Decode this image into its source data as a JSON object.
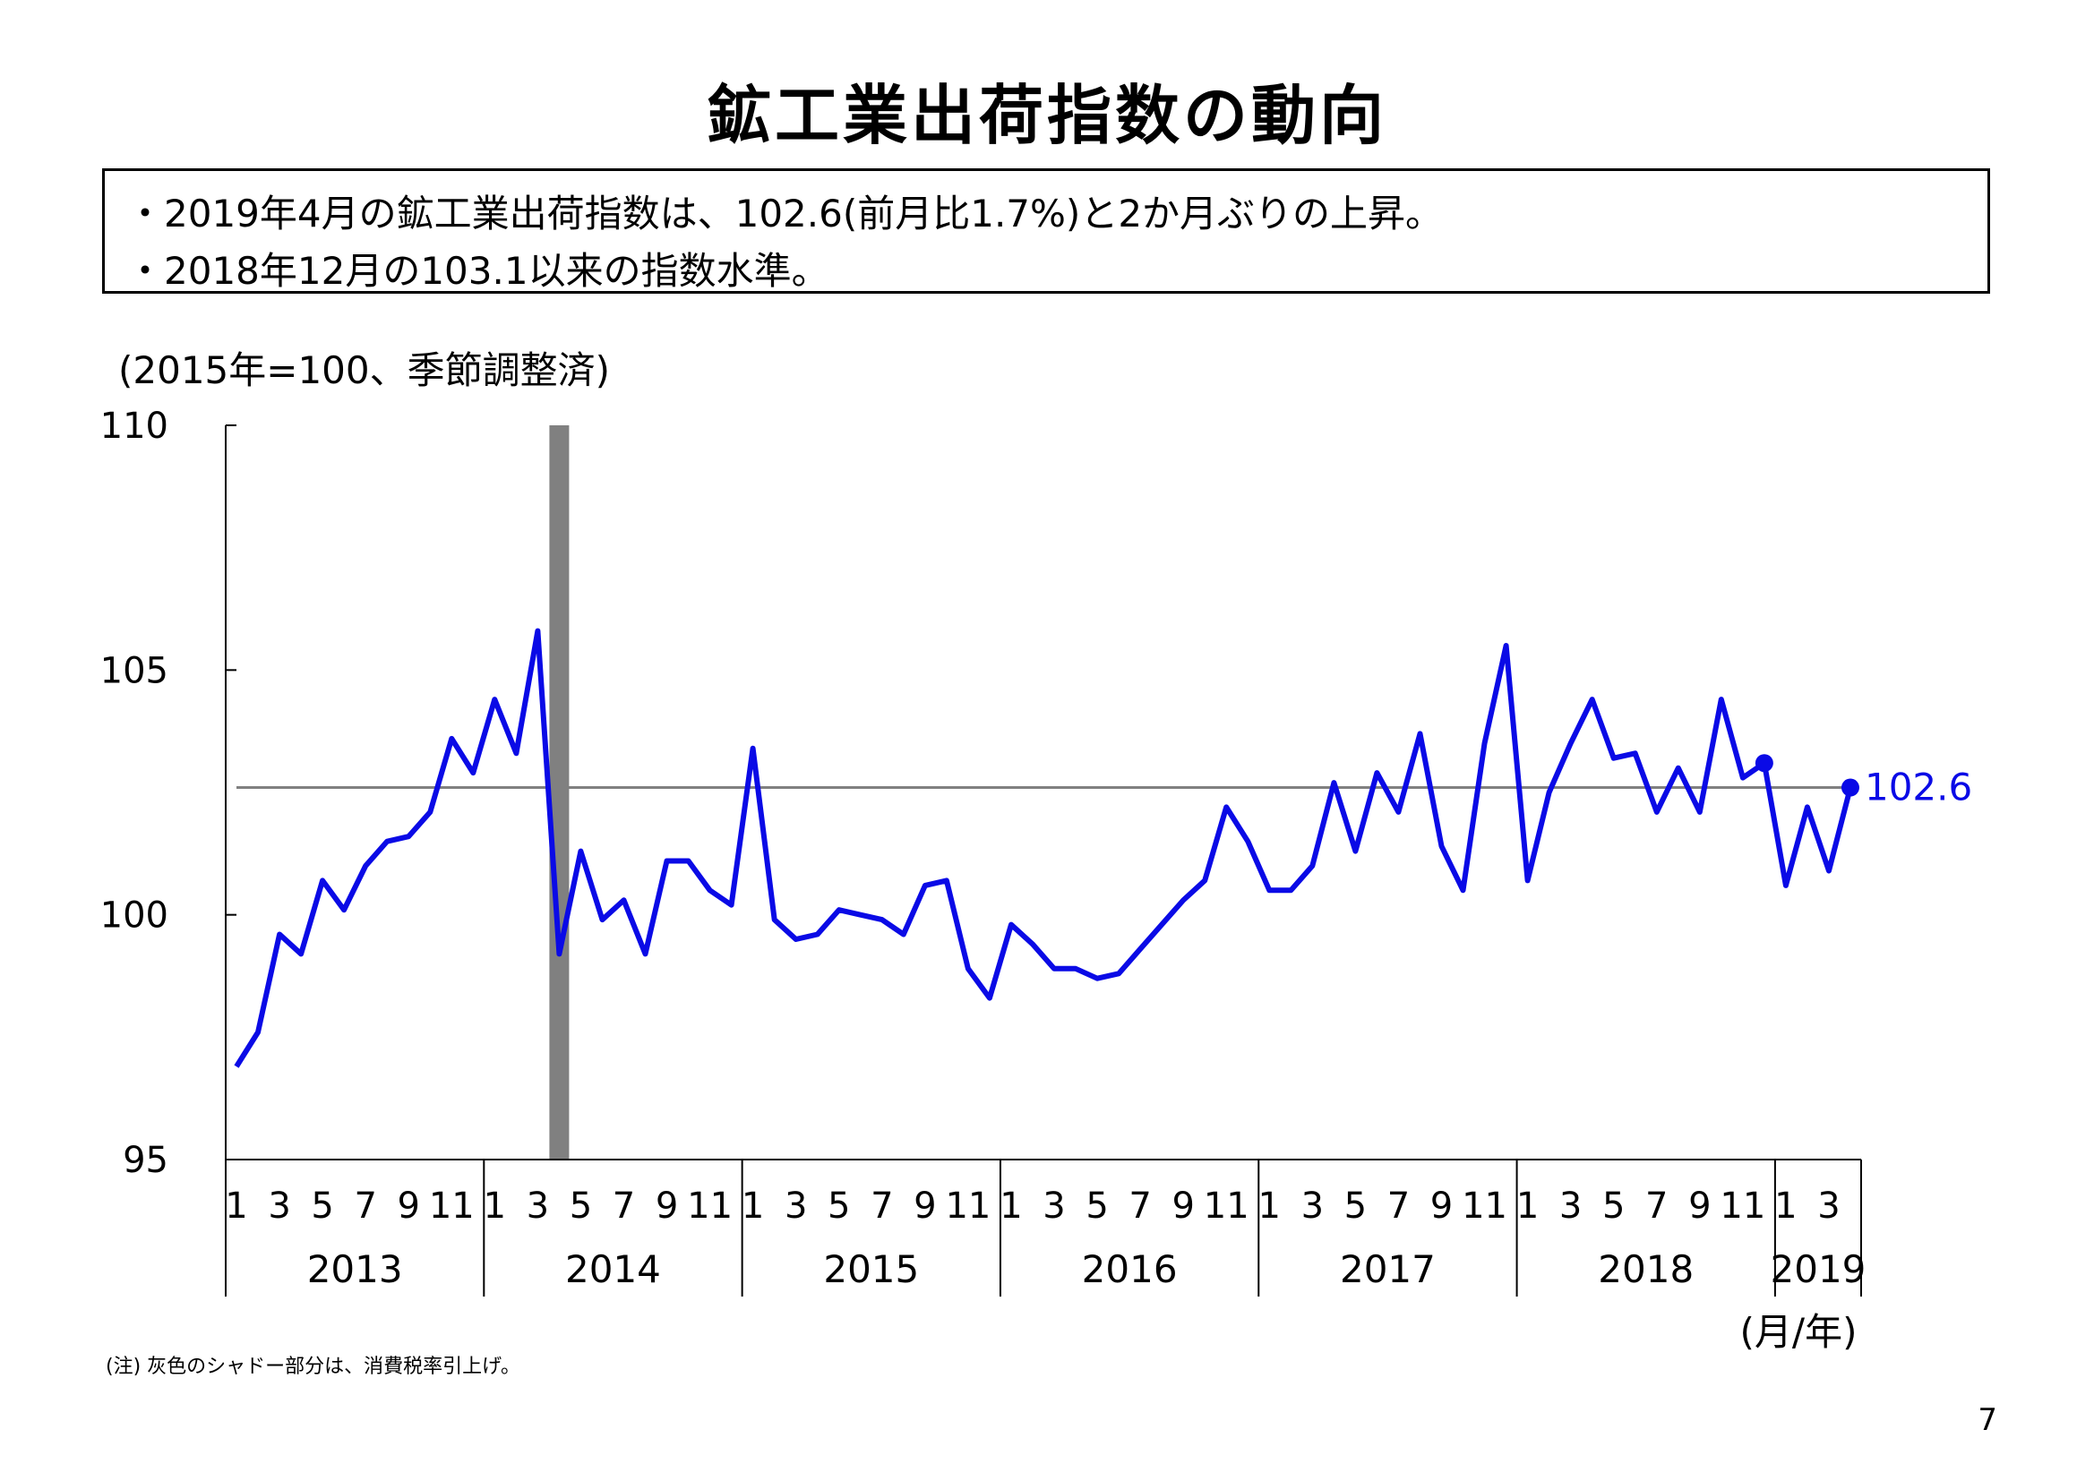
{
  "title": "鉱工業出荷指数の動向",
  "summary": [
    "・2019年4月の鉱工業出荷指数は、102.6(前月比1.7%)と2か月ぶりの上昇。",
    "・2018年12月の103.1以来の指数水準。"
  ],
  "unit_note": "(2015年=100、季節調整済)",
  "footnote": "(注) 灰色のシャドー部分は、消費税率引上げ。",
  "page_number": "7",
  "colors": {
    "series": "#0a0ae6",
    "reference": "#808080",
    "shade": "#808080",
    "axis": "#000000"
  },
  "chart_data": {
    "type": "line",
    "title": "",
    "xlabel": "(月/年)",
    "ylabel": "",
    "ylim": [
      95,
      110
    ],
    "yticks": [
      95,
      100,
      105,
      110
    ],
    "grid": false,
    "years": [
      "2013",
      "2014",
      "2015",
      "2016",
      "2017",
      "2018",
      "2019"
    ],
    "month_tick_labels": [
      "1",
      "3",
      "5",
      "7",
      "9",
      "11"
    ],
    "month_tick_labels_2019": [
      "1",
      "3"
    ],
    "shaded_period": {
      "from": "2014-04",
      "to": "2014-04"
    },
    "reference_line": 102.6,
    "series": [
      {
        "values": [
          {
            "x": "2013-01",
            "y": 96.9
          },
          {
            "x": "2013-02",
            "y": 97.6
          },
          {
            "x": "2013-03",
            "y": 99.6
          },
          {
            "x": "2013-04",
            "y": 99.2
          },
          {
            "x": "2013-05",
            "y": 100.7
          },
          {
            "x": "2013-06",
            "y": 100.1
          },
          {
            "x": "2013-07",
            "y": 101.0
          },
          {
            "x": "2013-08",
            "y": 101.5
          },
          {
            "x": "2013-09",
            "y": 101.6
          },
          {
            "x": "2013-10",
            "y": 102.1
          },
          {
            "x": "2013-11",
            "y": 103.6
          },
          {
            "x": "2013-12",
            "y": 102.9
          },
          {
            "x": "2014-01",
            "y": 104.4
          },
          {
            "x": "2014-02",
            "y": 103.3
          },
          {
            "x": "2014-03",
            "y": 105.8
          },
          {
            "x": "2014-04",
            "y": 99.2
          },
          {
            "x": "2014-05",
            "y": 101.3
          },
          {
            "x": "2014-06",
            "y": 99.9
          },
          {
            "x": "2014-07",
            "y": 100.3
          },
          {
            "x": "2014-08",
            "y": 99.2
          },
          {
            "x": "2014-09",
            "y": 101.1
          },
          {
            "x": "2014-10",
            "y": 101.1
          },
          {
            "x": "2014-11",
            "y": 100.5
          },
          {
            "x": "2014-12",
            "y": 100.2
          },
          {
            "x": "2015-01",
            "y": 103.4
          },
          {
            "x": "2015-02",
            "y": 99.9
          },
          {
            "x": "2015-03",
            "y": 99.5
          },
          {
            "x": "2015-04",
            "y": 99.6
          },
          {
            "x": "2015-05",
            "y": 100.1
          },
          {
            "x": "2015-06",
            "y": 100.0
          },
          {
            "x": "2015-07",
            "y": 99.9
          },
          {
            "x": "2015-08",
            "y": 99.6
          },
          {
            "x": "2015-09",
            "y": 100.6
          },
          {
            "x": "2015-10",
            "y": 100.7
          },
          {
            "x": "2015-11",
            "y": 98.9
          },
          {
            "x": "2015-12",
            "y": 98.3
          },
          {
            "x": "2016-01",
            "y": 99.8
          },
          {
            "x": "2016-02",
            "y": 99.4
          },
          {
            "x": "2016-03",
            "y": 98.9
          },
          {
            "x": "2016-04",
            "y": 98.9
          },
          {
            "x": "2016-05",
            "y": 98.7
          },
          {
            "x": "2016-06",
            "y": 98.8
          },
          {
            "x": "2016-07",
            "y": 99.3
          },
          {
            "x": "2016-08",
            "y": 99.8
          },
          {
            "x": "2016-09",
            "y": 100.3
          },
          {
            "x": "2016-10",
            "y": 100.7
          },
          {
            "x": "2016-11",
            "y": 102.2
          },
          {
            "x": "2016-12",
            "y": 101.5
          },
          {
            "x": "2017-01",
            "y": 100.5
          },
          {
            "x": "2017-02",
            "y": 100.5
          },
          {
            "x": "2017-03",
            "y": 101.0
          },
          {
            "x": "2017-04",
            "y": 102.7
          },
          {
            "x": "2017-05",
            "y": 101.3
          },
          {
            "x": "2017-06",
            "y": 102.9
          },
          {
            "x": "2017-07",
            "y": 102.1
          },
          {
            "x": "2017-08",
            "y": 103.7
          },
          {
            "x": "2017-09",
            "y": 101.4
          },
          {
            "x": "2017-10",
            "y": 100.5
          },
          {
            "x": "2017-11",
            "y": 103.5
          },
          {
            "x": "2017-12",
            "y": 105.5
          },
          {
            "x": "2018-01",
            "y": 100.7
          },
          {
            "x": "2018-02",
            "y": 102.5
          },
          {
            "x": "2018-03",
            "y": 103.5
          },
          {
            "x": "2018-04",
            "y": 104.4
          },
          {
            "x": "2018-05",
            "y": 103.2
          },
          {
            "x": "2018-06",
            "y": 103.3
          },
          {
            "x": "2018-07",
            "y": 102.1
          },
          {
            "x": "2018-08",
            "y": 103.0
          },
          {
            "x": "2018-09",
            "y": 102.1
          },
          {
            "x": "2018-10",
            "y": 104.4
          },
          {
            "x": "2018-11",
            "y": 102.8
          },
          {
            "x": "2018-12",
            "y": 103.1
          },
          {
            "x": "2019-01",
            "y": 100.6
          },
          {
            "x": "2019-02",
            "y": 102.2
          },
          {
            "x": "2019-03",
            "y": 100.9
          },
          {
            "x": "2019-04",
            "y": 102.6
          }
        ]
      }
    ],
    "highlighted_points": [
      {
        "x": "2018-12",
        "y": 103.1
      },
      {
        "x": "2019-04",
        "y": 102.6
      }
    ],
    "annotations": [
      {
        "x": "2019-04",
        "y": 102.6,
        "text": "102.6"
      }
    ]
  }
}
